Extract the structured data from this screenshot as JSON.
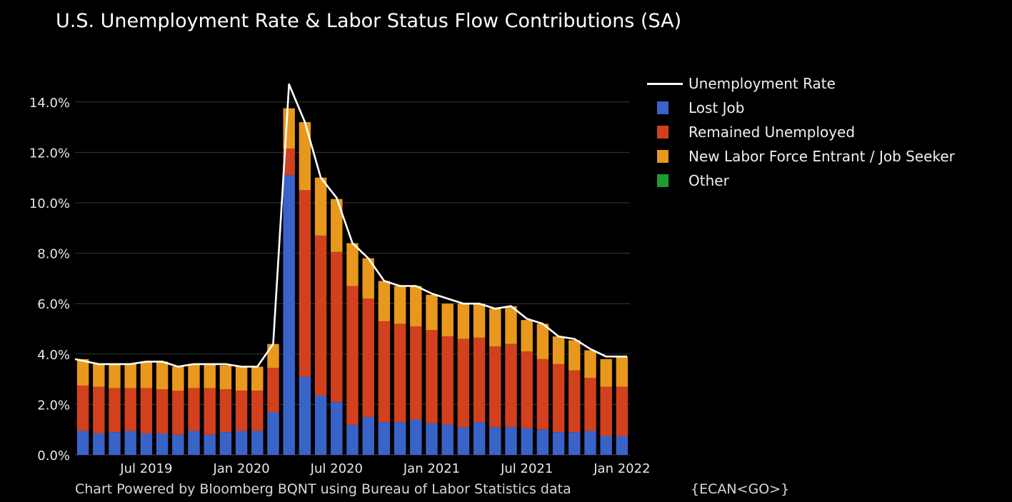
{
  "title": "U.S. Unemployment Rate & Labor Status Flow Contributions (SA)",
  "source": "Chart Powered by Bloomberg BQNT using Bureau of Labor Statistics data",
  "ecan": "{ECAN<GO>}",
  "colors": {
    "background": "#000000",
    "lost_job": "#3a63c9",
    "remained_unemployed": "#d2401e",
    "new_entrant": "#e8981c",
    "other": "#1f9a2e",
    "unemployment_rate": "#ffffff",
    "grid": "#3a3a3a"
  },
  "legend": [
    {
      "label": "Unemployment Rate",
      "kind": "line",
      "color": "#ffffff"
    },
    {
      "label": "Lost Job",
      "kind": "box",
      "color": "#3a63c9"
    },
    {
      "label": "Remained Unemployed",
      "kind": "box",
      "color": "#d2401e"
    },
    {
      "label": "New Labor Force Entrant / Job Seeker",
      "kind": "box",
      "color": "#e8981c"
    },
    {
      "label": "Other",
      "kind": "box",
      "color": "#1f9a2e"
    }
  ],
  "chart_data": {
    "type": "bar",
    "stacked": true,
    "categories": [
      "Mar 2019",
      "Apr 2019",
      "May 2019",
      "Jun 2019",
      "Jul 2019",
      "Aug 2019",
      "Sep 2019",
      "Oct 2019",
      "Nov 2019",
      "Dec 2019",
      "Jan 2020",
      "Feb 2020",
      "Mar 2020",
      "Apr 2020",
      "May 2020",
      "Jun 2020",
      "Jul 2020",
      "Aug 2020",
      "Sep 2020",
      "Oct 2020",
      "Nov 2020",
      "Dec 2020",
      "Jan 2021",
      "Feb 2021",
      "Mar 2021",
      "Apr 2021",
      "May 2021",
      "Jun 2021",
      "Jul 2021",
      "Aug 2021",
      "Sep 2021",
      "Oct 2021",
      "Nov 2021",
      "Dec 2021",
      "Jan 2022"
    ],
    "x_tick_labels": [
      {
        "label": "Jul 2019",
        "index": 4
      },
      {
        "label": "Jan 2020",
        "index": 10
      },
      {
        "label": "Jul 2020",
        "index": 16
      },
      {
        "label": "Jan 2021",
        "index": 22
      },
      {
        "label": "Jul 2021",
        "index": 28
      },
      {
        "label": "Jan 2022",
        "index": 34
      }
    ],
    "series": [
      {
        "name": "Lost Job",
        "values": [
          0.95,
          0.85,
          0.9,
          0.95,
          0.85,
          0.85,
          0.8,
          0.95,
          0.8,
          0.9,
          0.95,
          0.95,
          1.7,
          11.1,
          3.1,
          2.35,
          2.1,
          1.2,
          1.5,
          1.3,
          1.3,
          1.4,
          1.25,
          1.2,
          1.1,
          1.3,
          1.1,
          1.1,
          1.05,
          1.0,
          0.9,
          0.9,
          0.95,
          0.75,
          0.75
        ]
      },
      {
        "name": "Remained Unemployed",
        "values": [
          1.8,
          1.85,
          1.75,
          1.7,
          1.8,
          1.75,
          1.75,
          1.7,
          1.85,
          1.7,
          1.6,
          1.6,
          1.75,
          1.05,
          7.4,
          6.35,
          5.95,
          5.5,
          4.7,
          4.0,
          3.9,
          3.7,
          3.7,
          3.5,
          3.5,
          3.35,
          3.2,
          3.3,
          3.05,
          2.8,
          2.7,
          2.45,
          2.1,
          1.95,
          1.95
        ]
      },
      {
        "name": "New Labor Force Entrant / Job Seeker",
        "values": [
          1.05,
          0.9,
          0.95,
          0.95,
          1.05,
          1.1,
          0.95,
          0.95,
          0.95,
          0.95,
          0.95,
          0.95,
          0.95,
          1.6,
          2.7,
          2.3,
          2.1,
          1.7,
          1.6,
          1.6,
          1.5,
          1.6,
          1.4,
          1.3,
          1.4,
          1.35,
          1.5,
          1.5,
          1.25,
          1.4,
          1.1,
          1.2,
          1.1,
          1.1,
          1.2
        ]
      },
      {
        "name": "Other",
        "values": [
          0,
          0,
          0,
          0,
          0,
          0,
          0,
          0,
          0,
          0,
          0,
          0,
          0,
          0,
          0,
          0,
          0,
          0,
          0,
          0,
          0,
          0,
          0,
          0,
          0,
          0,
          0,
          0,
          0,
          0,
          0,
          0,
          0,
          0,
          0
        ]
      },
      {
        "name": "Unemployment Rate",
        "kind": "line",
        "values": [
          3.8,
          3.6,
          3.6,
          3.6,
          3.7,
          3.7,
          3.5,
          3.6,
          3.6,
          3.6,
          3.5,
          3.5,
          4.4,
          14.7,
          13.2,
          11.0,
          10.2,
          8.4,
          7.8,
          6.9,
          6.7,
          6.7,
          6.4,
          6.2,
          6.0,
          6.0,
          5.8,
          5.9,
          5.4,
          5.2,
          4.7,
          4.6,
          4.2,
          3.9,
          3.9
        ]
      }
    ],
    "ylim": [
      0,
      14.7
    ],
    "y_ticks": [
      "0.0%",
      "2.0%",
      "4.0%",
      "6.0%",
      "8.0%",
      "10.0%",
      "12.0%",
      "14.0%"
    ],
    "grid": true,
    "legend_position": "right"
  }
}
